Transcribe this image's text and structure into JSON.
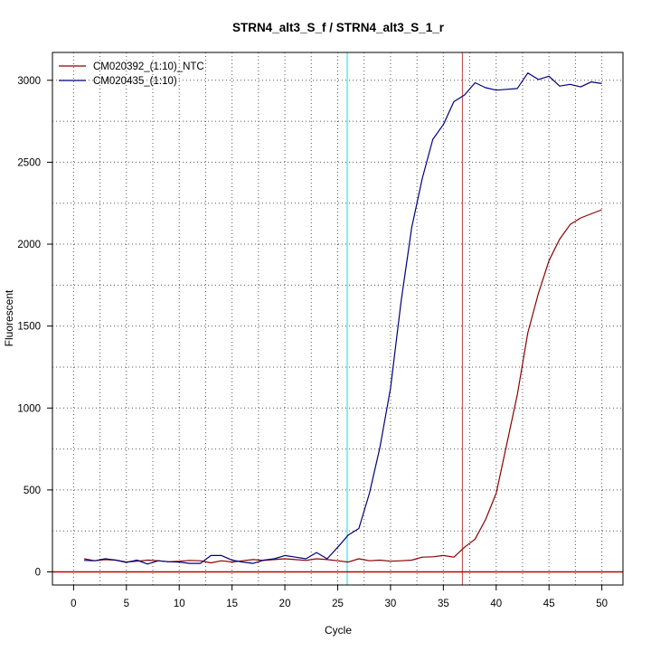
{
  "chart_data": {
    "type": "line",
    "title": "STRN4_alt3_S_f / STRN4_alt3_S_1_r",
    "xlabel": "Cycle",
    "ylabel": "Fluorescent",
    "xlim": [
      -2,
      52
    ],
    "ylim": [
      -80,
      3170
    ],
    "xticks": [
      0,
      5,
      10,
      15,
      20,
      25,
      30,
      35,
      40,
      45,
      50
    ],
    "yticks": [
      0,
      500,
      1000,
      1500,
      2000,
      2500,
      3000
    ],
    "grid": "dotted",
    "legend_position": "top-left",
    "x": [
      1,
      2,
      3,
      4,
      5,
      6,
      7,
      8,
      9,
      10,
      11,
      12,
      13,
      14,
      15,
      16,
      17,
      18,
      19,
      20,
      21,
      22,
      23,
      24,
      25,
      26,
      27,
      28,
      29,
      30,
      31,
      32,
      33,
      34,
      35,
      36,
      37,
      38,
      39,
      40,
      41,
      42,
      43,
      44,
      45,
      46,
      47,
      48,
      49,
      50
    ],
    "series": [
      {
        "name": "CM020392_(1:10)_NTC",
        "color": "#8b0000",
        "values": [
          80,
          68,
          75,
          72,
          60,
          65,
          72,
          68,
          62,
          65,
          70,
          68,
          55,
          68,
          60,
          68,
          75,
          70,
          75,
          80,
          75,
          70,
          80,
          75,
          68,
          60,
          80,
          68,
          72,
          65,
          68,
          72,
          90,
          92,
          100,
          90,
          150,
          200,
          320,
          480,
          780,
          1080,
          1460,
          1700,
          1900,
          2030,
          2120,
          2160,
          2185,
          2210
        ]
      },
      {
        "name": "CM020435_(1:10)",
        "color": "#00007a",
        "values": [
          70,
          68,
          80,
          72,
          58,
          72,
          48,
          68,
          62,
          60,
          52,
          52,
          100,
          100,
          72,
          60,
          52,
          72,
          80,
          100,
          90,
          80,
          118,
          80,
          150,
          225,
          265,
          480,
          760,
          1120,
          1650,
          2100,
          2400,
          2640,
          2730,
          2870,
          2910,
          2985,
          2955,
          2940,
          2945,
          2950,
          3045,
          3005,
          3025,
          2965,
          2975,
          2960,
          2990,
          2980
        ]
      }
    ],
    "reference_lines": [
      {
        "orientation": "vertical",
        "value": 25.9,
        "color": "#00e5ee"
      },
      {
        "orientation": "vertical",
        "value": 36.8,
        "color": "#c04040"
      },
      {
        "orientation": "horizontal",
        "value": 0,
        "color": "#c00000"
      }
    ]
  }
}
